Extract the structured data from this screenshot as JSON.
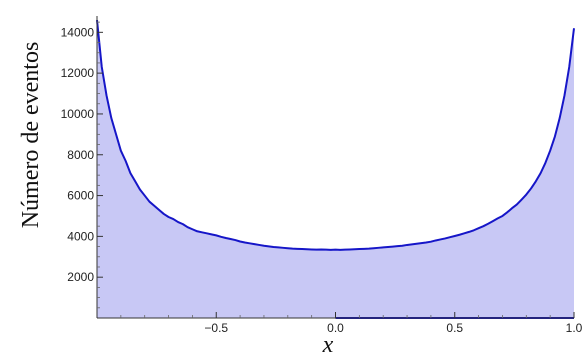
{
  "chart_data": {
    "type": "area",
    "title": "",
    "xlabel": "x",
    "ylabel": "Número de eventos",
    "xlim": [
      -1,
      1
    ],
    "ylim": [
      0,
      14800
    ],
    "x_ticks": [
      {
        "value": -0.5,
        "label": "−0.5"
      },
      {
        "value": 0.0,
        "label": "0.0"
      },
      {
        "value": 0.5,
        "label": "0.5"
      },
      {
        "value": 1.0,
        "label": "1.0"
      }
    ],
    "y_ticks": [
      {
        "value": 2000,
        "label": "2000"
      },
      {
        "value": 4000,
        "label": "4000"
      },
      {
        "value": 6000,
        "label": "6000"
      },
      {
        "value": 8000,
        "label": "8000"
      },
      {
        "value": 10000,
        "label": "10000"
      },
      {
        "value": 12000,
        "label": "12000"
      },
      {
        "value": 14000,
        "label": "14000"
      }
    ],
    "grid": false,
    "colors": {
      "line": "#1616c8",
      "fill": "#c8c8f5",
      "axis": "#333333"
    },
    "series": [
      {
        "x": [
          -1.0,
          -0.98,
          -0.96,
          -0.94,
          -0.92,
          -0.9,
          -0.88,
          -0.86,
          -0.84,
          -0.82,
          -0.8,
          -0.78,
          -0.76,
          -0.74,
          -0.72,
          -0.7,
          -0.68,
          -0.66,
          -0.64,
          -0.62,
          -0.6,
          -0.58,
          -0.56,
          -0.54,
          -0.52,
          -0.5,
          -0.48,
          -0.46,
          -0.44,
          -0.42,
          -0.4,
          -0.38,
          -0.36,
          -0.34,
          -0.32,
          -0.3,
          -0.28,
          -0.26,
          -0.24,
          -0.22,
          -0.2,
          -0.18,
          -0.16,
          -0.14,
          -0.12,
          -0.1,
          -0.08,
          -0.06,
          -0.04,
          -0.02,
          0.0,
          0.02,
          0.04,
          0.06,
          0.08,
          0.1,
          0.12,
          0.14,
          0.16,
          0.18,
          0.2,
          0.22,
          0.24,
          0.26,
          0.28,
          0.3,
          0.32,
          0.34,
          0.36,
          0.38,
          0.4,
          0.42,
          0.44,
          0.46,
          0.48,
          0.5,
          0.52,
          0.54,
          0.56,
          0.58,
          0.6,
          0.62,
          0.64,
          0.66,
          0.68,
          0.7,
          0.72,
          0.74,
          0.76,
          0.78,
          0.8,
          0.82,
          0.84,
          0.86,
          0.88,
          0.9,
          0.92,
          0.94,
          0.96,
          0.98,
          1.0
        ],
        "y": [
          14600,
          12300,
          10900,
          9800,
          9000,
          8200,
          7700,
          7100,
          6700,
          6300,
          6000,
          5700,
          5500,
          5300,
          5100,
          4950,
          4850,
          4700,
          4600,
          4450,
          4350,
          4250,
          4200,
          4150,
          4100,
          4050,
          3980,
          3920,
          3870,
          3820,
          3750,
          3700,
          3660,
          3620,
          3580,
          3540,
          3510,
          3480,
          3460,
          3440,
          3420,
          3400,
          3390,
          3380,
          3370,
          3360,
          3350,
          3360,
          3350,
          3340,
          3350,
          3340,
          3350,
          3360,
          3370,
          3380,
          3390,
          3400,
          3420,
          3440,
          3460,
          3480,
          3500,
          3520,
          3540,
          3580,
          3610,
          3640,
          3670,
          3700,
          3740,
          3800,
          3850,
          3900,
          3960,
          4020,
          4080,
          4150,
          4220,
          4300,
          4400,
          4500,
          4620,
          4750,
          4880,
          5000,
          5180,
          5380,
          5560,
          5800,
          6050,
          6350,
          6700,
          7100,
          7600,
          8200,
          8900,
          9800,
          10900,
          12300,
          14200
        ]
      }
    ]
  }
}
